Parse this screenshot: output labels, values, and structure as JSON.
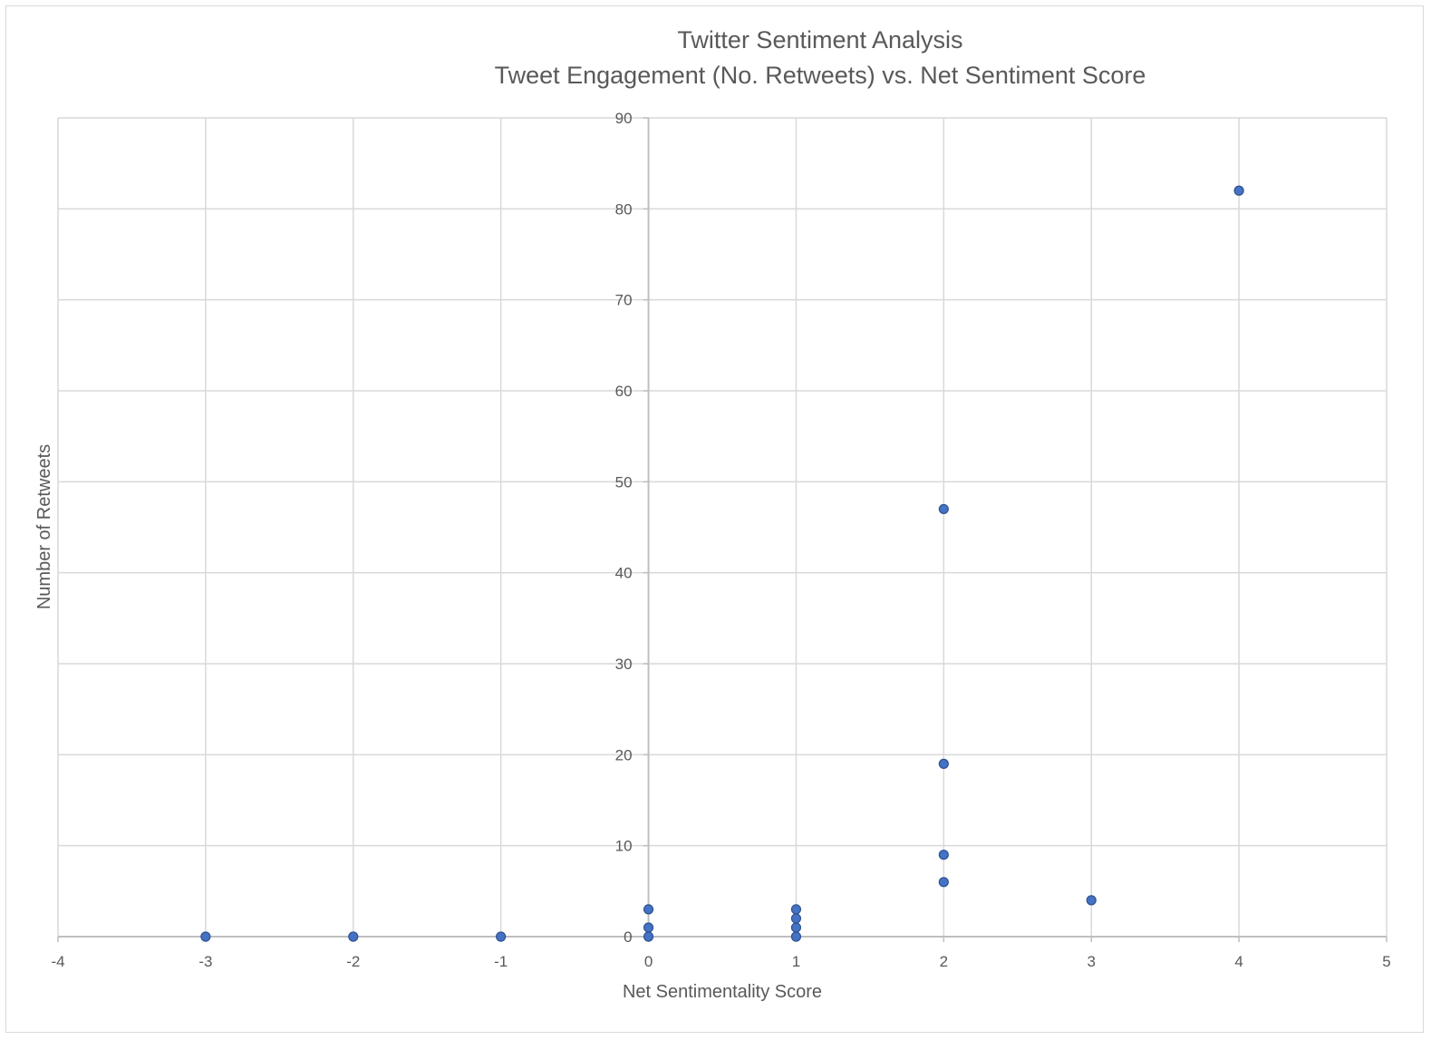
{
  "chart_data": {
    "type": "scatter",
    "title": "Twitter Sentiment Analysis",
    "subtitle": "Tweet Engagement (No. Retweets) vs. Net Sentiment Score",
    "xlabel": "Net Sentimentality Score",
    "ylabel": "Number of Retweets",
    "xlim": [
      -4,
      5
    ],
    "ylim": [
      0,
      90
    ],
    "x_ticks": [
      -4,
      -3,
      -2,
      -1,
      0,
      1,
      2,
      3,
      4,
      5
    ],
    "y_ticks": [
      0,
      10,
      20,
      30,
      40,
      50,
      60,
      70,
      80,
      90
    ],
    "grid": true,
    "legend": "none",
    "marker_color": "#4472c4",
    "marker_edge_color": "#2f528f",
    "series": [
      {
        "points": [
          {
            "x": -3,
            "y": 0
          },
          {
            "x": -2,
            "y": 0
          },
          {
            "x": -1,
            "y": 0
          },
          {
            "x": 0,
            "y": 0
          },
          {
            "x": 0,
            "y": 1
          },
          {
            "x": 0,
            "y": 3
          },
          {
            "x": 1,
            "y": 0
          },
          {
            "x": 1,
            "y": 1
          },
          {
            "x": 1,
            "y": 2
          },
          {
            "x": 1,
            "y": 3
          },
          {
            "x": 2,
            "y": 6
          },
          {
            "x": 2,
            "y": 9
          },
          {
            "x": 2,
            "y": 19
          },
          {
            "x": 2,
            "y": 47
          },
          {
            "x": 3,
            "y": 4
          },
          {
            "x": 4,
            "y": 82
          }
        ]
      }
    ]
  }
}
